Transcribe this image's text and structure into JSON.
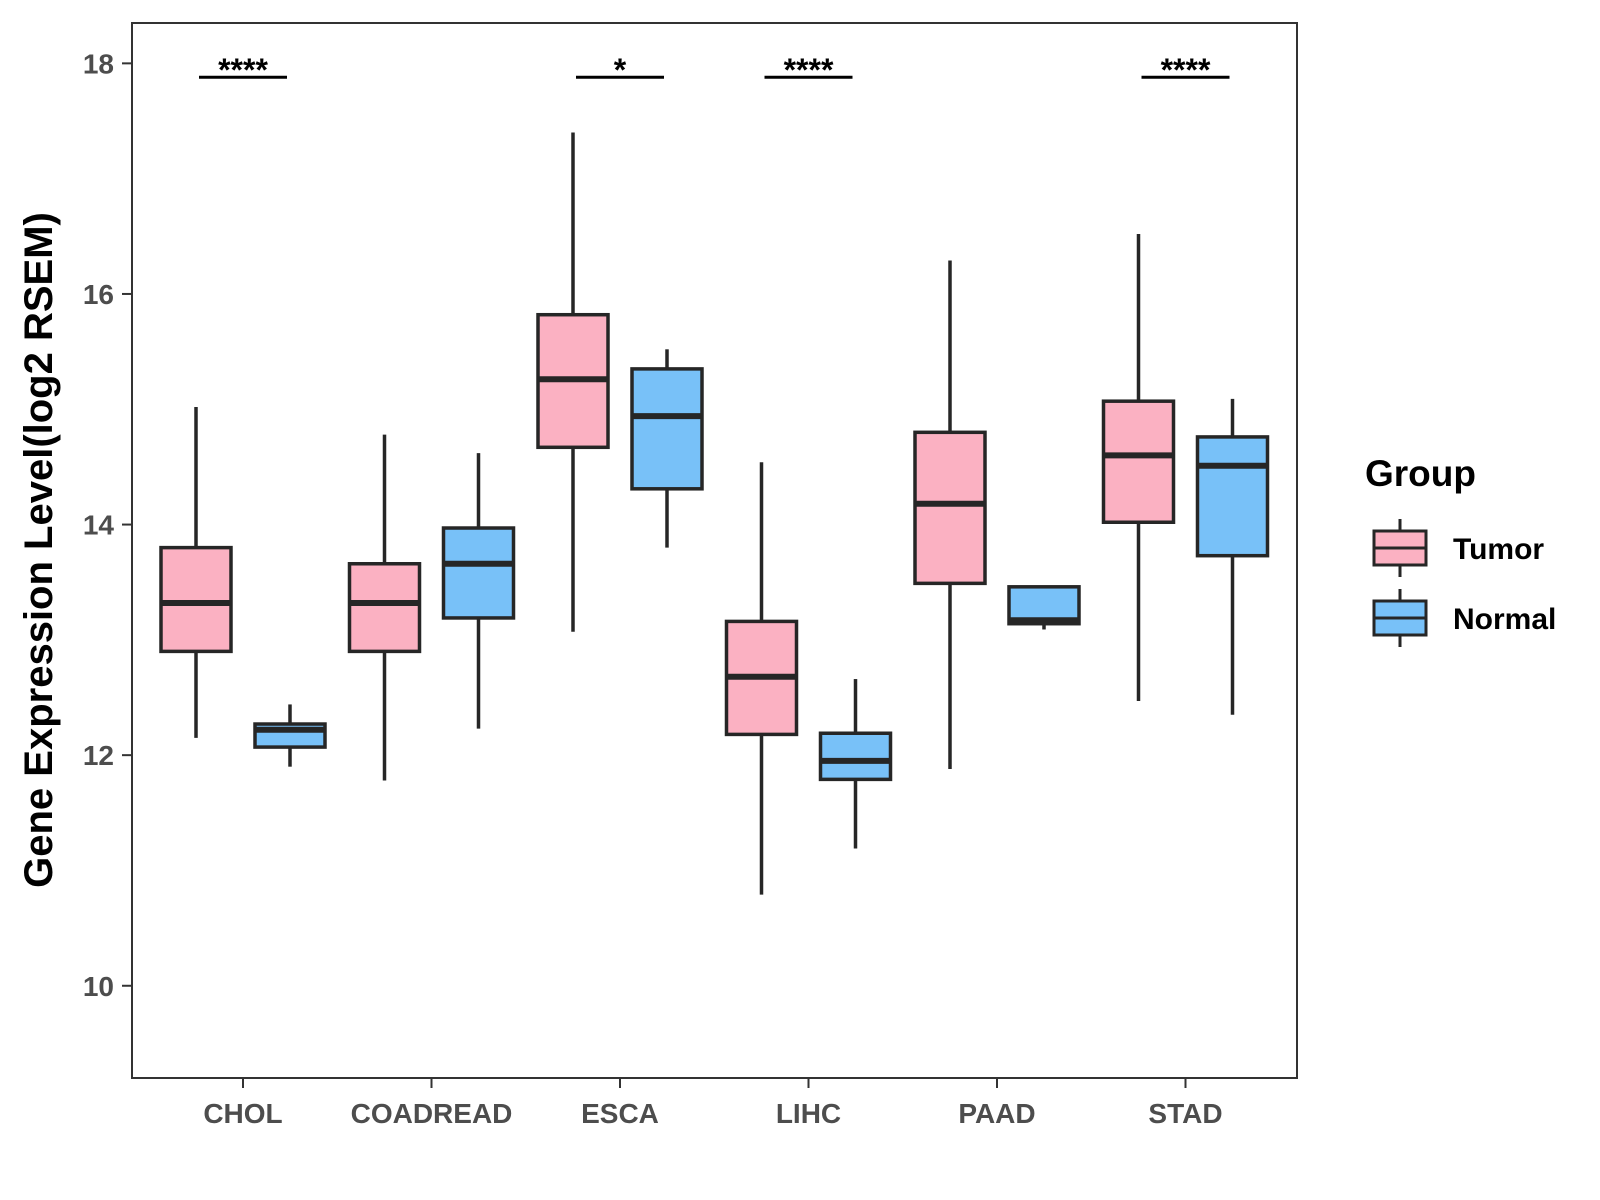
{
  "chart_data": {
    "type": "boxplot",
    "title": "",
    "xlabel": "",
    "ylabel": "Gene Expression Level(log2 RSEM)",
    "ylim": [
      9.2,
      18.35
    ],
    "yticks": [
      10,
      12,
      14,
      16,
      18
    ],
    "grid": false,
    "categories": [
      "CHOL",
      "COADREAD",
      "ESCA",
      "LIHC",
      "PAAD",
      "STAD"
    ],
    "legend": {
      "title": "Group",
      "position": "right",
      "entries": [
        {
          "name": "Tumor",
          "color": "#fbb1c2"
        },
        {
          "name": "Normal",
          "color": "#78c1f8"
        }
      ]
    },
    "series": [
      {
        "name": "Tumor",
        "color": "#fbb1c2",
        "boxes": [
          {
            "category": "CHOL",
            "min": 12.15,
            "q1": 12.9,
            "median": 13.32,
            "q3": 13.8,
            "max": 15.02
          },
          {
            "category": "COADREAD",
            "min": 11.78,
            "q1": 12.9,
            "median": 13.32,
            "q3": 13.66,
            "max": 14.78
          },
          {
            "category": "ESCA",
            "min": 13.07,
            "q1": 14.67,
            "median": 15.26,
            "q3": 15.82,
            "max": 17.4
          },
          {
            "category": "LIHC",
            "min": 10.79,
            "q1": 12.18,
            "median": 12.68,
            "q3": 13.16,
            "max": 14.54
          },
          {
            "category": "PAAD",
            "min": 11.88,
            "q1": 13.49,
            "median": 14.18,
            "q3": 14.8,
            "max": 16.29
          },
          {
            "category": "STAD",
            "min": 12.47,
            "q1": 14.02,
            "median": 14.6,
            "q3": 15.07,
            "max": 16.52
          }
        ]
      },
      {
        "name": "Normal",
        "color": "#78c1f8",
        "boxes": [
          {
            "category": "CHOL",
            "min": 11.9,
            "q1": 12.07,
            "median": 12.22,
            "q3": 12.27,
            "max": 12.44
          },
          {
            "category": "COADREAD",
            "min": 12.23,
            "q1": 13.19,
            "median": 13.66,
            "q3": 13.97,
            "max": 14.62
          },
          {
            "category": "ESCA",
            "min": 13.8,
            "q1": 14.31,
            "median": 14.94,
            "q3": 15.35,
            "max": 15.52
          },
          {
            "category": "LIHC",
            "min": 11.19,
            "q1": 11.79,
            "median": 11.95,
            "q3": 12.19,
            "max": 12.66
          },
          {
            "category": "PAAD",
            "min": 13.09,
            "q1": 13.14,
            "median": 13.17,
            "q3": 13.46,
            "max": 13.46
          },
          {
            "category": "STAD",
            "min": 12.35,
            "q1": 13.73,
            "median": 14.51,
            "q3": 14.76,
            "max": 15.09
          }
        ]
      }
    ],
    "significance": [
      {
        "category": "CHOL",
        "label": "****",
        "y": 17.88
      },
      {
        "category": "ESCA",
        "label": "*",
        "y": 17.88
      },
      {
        "category": "LIHC",
        "label": "****",
        "y": 17.88
      },
      {
        "category": "STAD",
        "label": "****",
        "y": 17.88
      }
    ]
  }
}
